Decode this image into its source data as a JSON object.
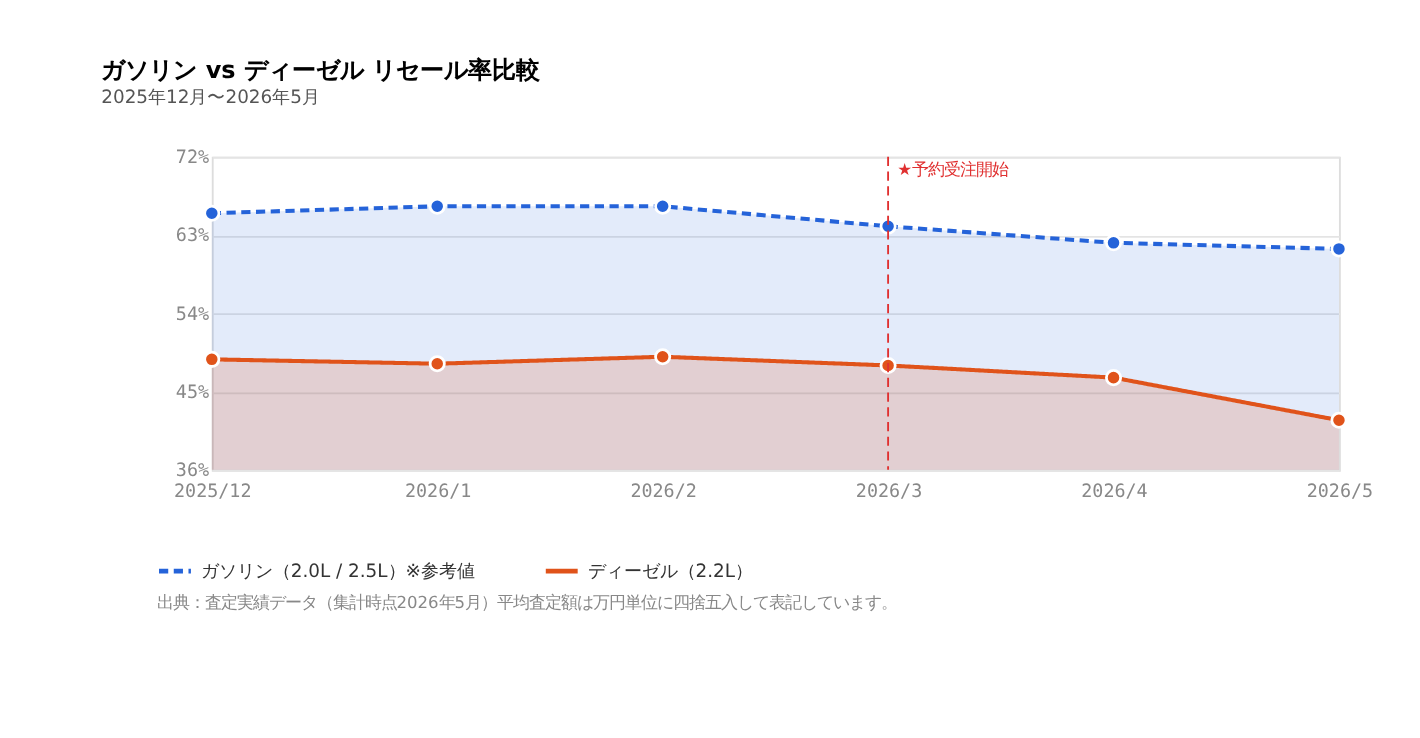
{
  "chart_data": {
    "type": "area",
    "title": "ガソリン vs ディーゼル リセール率比較",
    "subtitle": "2025年12月〜2026年5月",
    "categories": [
      "2025/12",
      "2026/1",
      "2026/2",
      "2026/3",
      "2026/4",
      "2026/5"
    ],
    "series": [
      {
        "name": "ガソリン（2.0L / 2.5L）※参考値",
        "color": "#2563d9",
        "line_style": "dashed",
        "values": [
          65.5,
          66.3,
          66.3,
          64.0,
          62.1,
          61.4
        ]
      },
      {
        "name": "ディーゼル（2.2L）",
        "color": "#e0531a",
        "line_style": "solid",
        "values": [
          48.7,
          48.2,
          49.0,
          48.0,
          46.6,
          41.7
        ]
      }
    ],
    "ylim": [
      36,
      72
    ],
    "yticks": [
      {
        "value": 36,
        "label": "36%"
      },
      {
        "value": 45,
        "label": "45%"
      },
      {
        "value": 54,
        "label": "54%"
      },
      {
        "value": 63,
        "label": "63%"
      },
      {
        "value": 72,
        "label": "72%"
      }
    ],
    "ref_lines": [
      {
        "axis": "x",
        "value": "2026/3",
        "label": "★予約受注開始",
        "color": "#e03030",
        "line_style": "dashed"
      }
    ],
    "grid": "y",
    "marker": "circle",
    "legend": "bottom left",
    "annotations": [
      "出典：査定実績データ（集計時点2026年5月）平均査定額は万円単位に四捨五入して表記しています。"
    ]
  }
}
